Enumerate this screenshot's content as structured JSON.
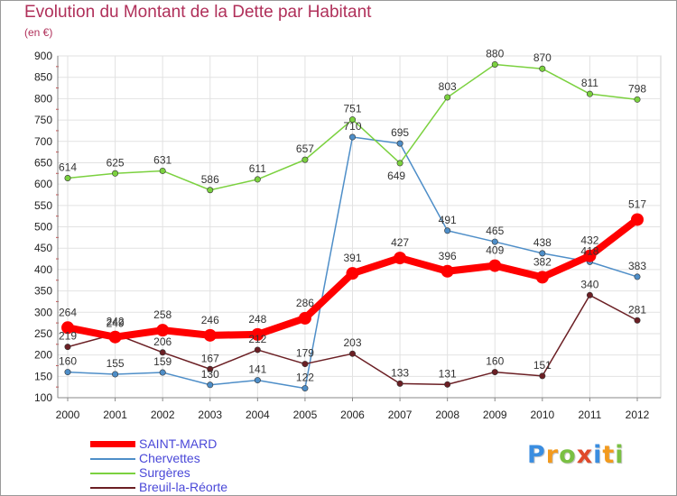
{
  "chart_data": {
    "type": "line",
    "title": "Evolution du Montant de la Dette par Habitant",
    "unit": "(en €)",
    "x": [
      "2000",
      "2001",
      "2002",
      "2003",
      "2004",
      "2005",
      "2006",
      "2007",
      "2008",
      "2009",
      "2010",
      "2011",
      "2012"
    ],
    "ylim": [
      100,
      900
    ],
    "yticks": [
      100,
      150,
      200,
      250,
      300,
      350,
      400,
      450,
      500,
      550,
      600,
      650,
      700,
      750,
      800,
      850,
      900
    ],
    "grid": true,
    "legend_position": "bottom-left",
    "series": [
      {
        "name": "Chervettes",
        "color": "#4e8ec8",
        "values": [
          160,
          155,
          159,
          130,
          141,
          122,
          710,
          695,
          491,
          465,
          438,
          418,
          383
        ]
      },
      {
        "name": "Surgères",
        "color": "#7bd13f",
        "values": [
          614,
          625,
          631,
          586,
          611,
          657,
          751,
          649,
          803,
          880,
          870,
          811,
          798
        ]
      },
      {
        "name": "Breuil-la-Réorte",
        "color": "#6b1f24",
        "values": [
          219,
          249,
          206,
          167,
          212,
          179,
          203,
          133,
          131,
          160,
          151,
          340,
          281
        ]
      },
      {
        "name": "SAINT-MARD",
        "color": "#ff0000",
        "values": [
          264,
          242,
          258,
          246,
          248,
          286,
          391,
          427,
          396,
          409,
          382,
          432,
          517
        ]
      }
    ],
    "legend_order": [
      "SAINT-MARD",
      "Chervettes",
      "Surgères",
      "Breuil-la-Réorte"
    ]
  },
  "logo": {
    "letters": [
      "P",
      "r",
      "o",
      "x",
      "i",
      "t",
      "i"
    ],
    "colors": [
      "#3a8de0",
      "#f29a1e",
      "#7ac043",
      "#e04a2b",
      "#3a8de0",
      "#f29a1e",
      "#7ac043"
    ]
  }
}
